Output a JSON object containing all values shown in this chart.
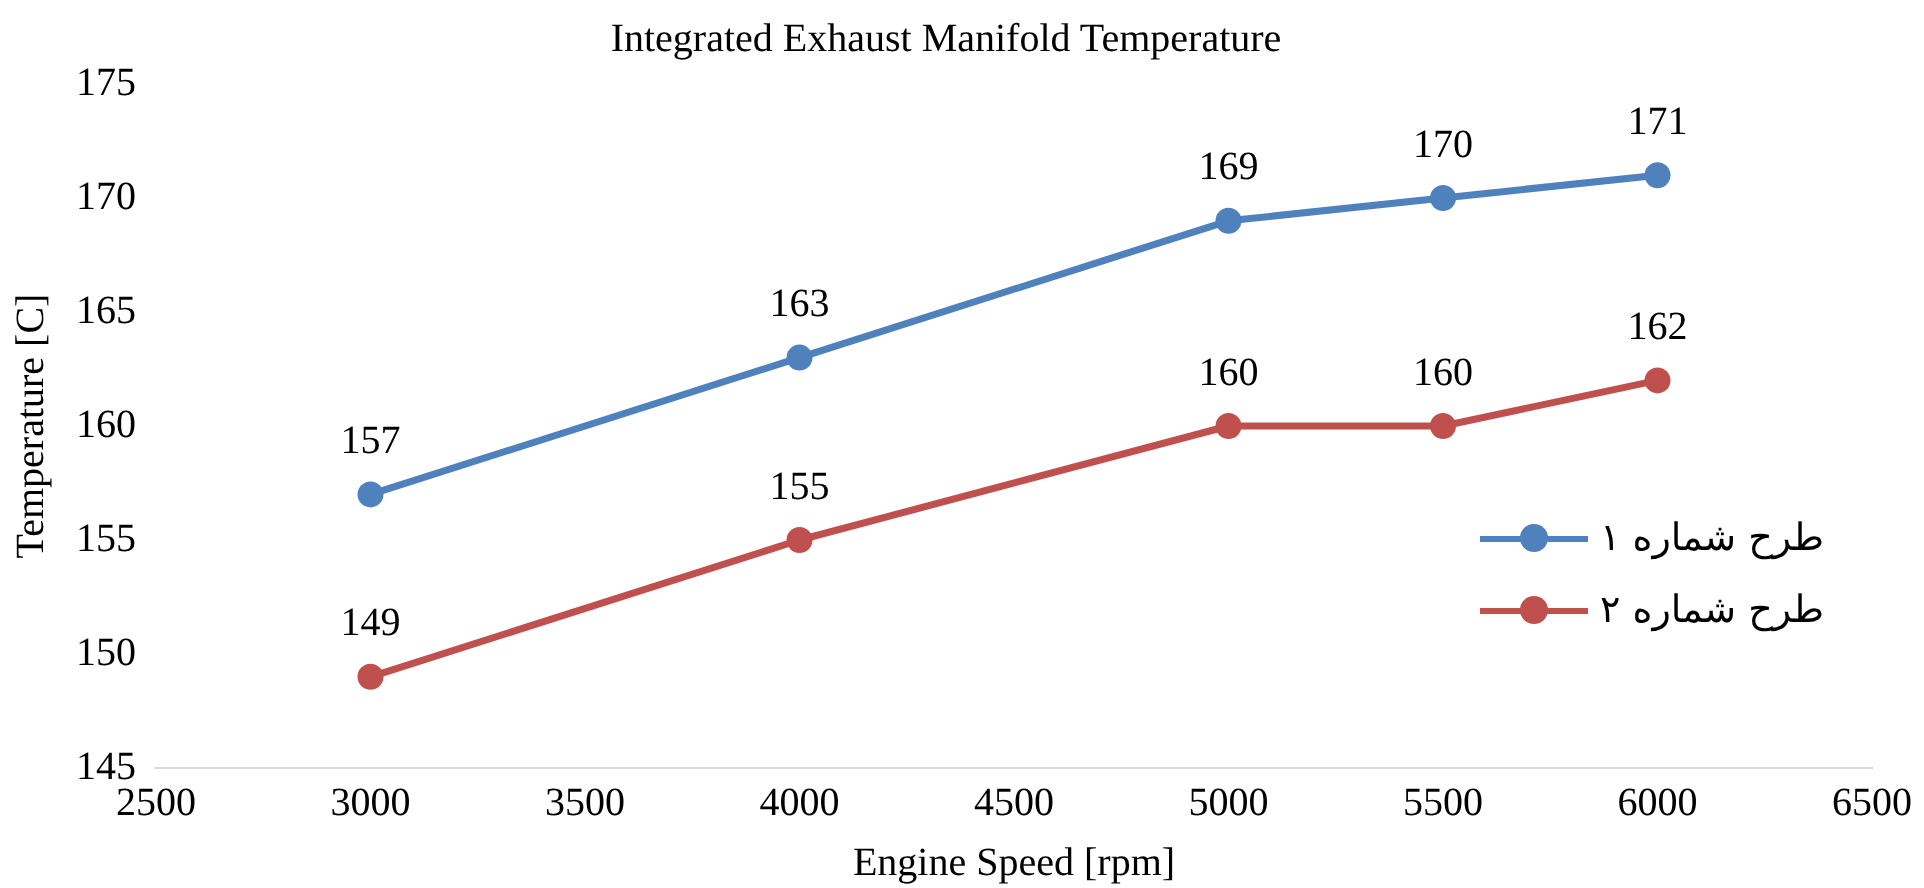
{
  "chart_data": {
    "type": "line",
    "title": "Integrated Exhaust Manifold Temperature",
    "xlabel": "Engine Speed [rpm]",
    "ylabel": "Temperature [C]",
    "x": [
      3000,
      4000,
      5000,
      5500,
      6000
    ],
    "series": [
      {
        "name": "طرح شماره ۱",
        "color": "#4f81bd",
        "values": [
          157,
          163,
          169,
          170,
          171
        ]
      },
      {
        "name": "طرح شماره ۲",
        "color": "#c0504d",
        "values": [
          149,
          155,
          160,
          160,
          162
        ]
      }
    ],
    "xlim": [
      2500,
      6500
    ],
    "xticks": [
      2500,
      3000,
      3500,
      4000,
      4500,
      5000,
      5500,
      6000,
      6500
    ],
    "ylim": [
      145,
      175
    ],
    "yticks": [
      145,
      150,
      155,
      160,
      165,
      170,
      175
    ],
    "grid": false,
    "legend": "right",
    "marker": "circle",
    "line_style": "solid",
    "data_labels": true
  }
}
